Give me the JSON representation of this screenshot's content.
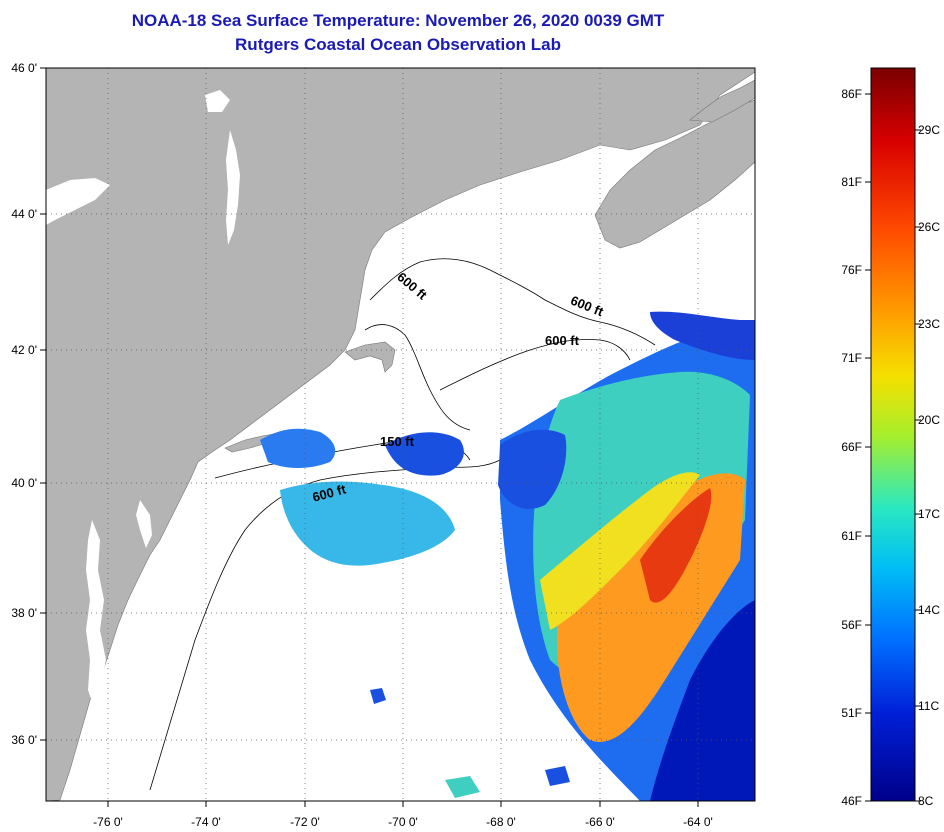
{
  "title": {
    "line1": "NOAA-18 Sea Surface Temperature:  November 26, 2020 0039 GMT",
    "line2": "Rutgers Coastal Ocean Observation Lab"
  },
  "map": {
    "lon_ticks": [
      "-76 0'",
      "-74 0'",
      "-72 0'",
      "-70 0'",
      "-68 0'",
      "-66 0'",
      "-64 0'"
    ],
    "lat_ticks": [
      "46 0'",
      "44 0'",
      "42 0'",
      "40 0'",
      "38 0'",
      "36 0'"
    ],
    "contour_labels": [
      "600 ft",
      "600 ft",
      "600 ft",
      "150 ft",
      "600 ft"
    ],
    "colors": {
      "land": "#b4b4b4",
      "ocean_nodata": "#ffffff",
      "grid": "#555555"
    }
  },
  "colorbar": {
    "fahrenheit_labels": [
      "86F",
      "81F",
      "76F",
      "71F",
      "66F",
      "61F",
      "56F",
      "51F",
      "46F"
    ],
    "celsius_labels": [
      "29C",
      "26C",
      "23C",
      "20C",
      "17C",
      "14C",
      "11C",
      "8C"
    ],
    "colors": [
      "#7a0000",
      "#d80000",
      "#ff4a00",
      "#ff9a00",
      "#f5e000",
      "#a8ee2a",
      "#2ae8c0",
      "#00bff5",
      "#0070ff",
      "#0020d8",
      "#00008a"
    ]
  }
}
